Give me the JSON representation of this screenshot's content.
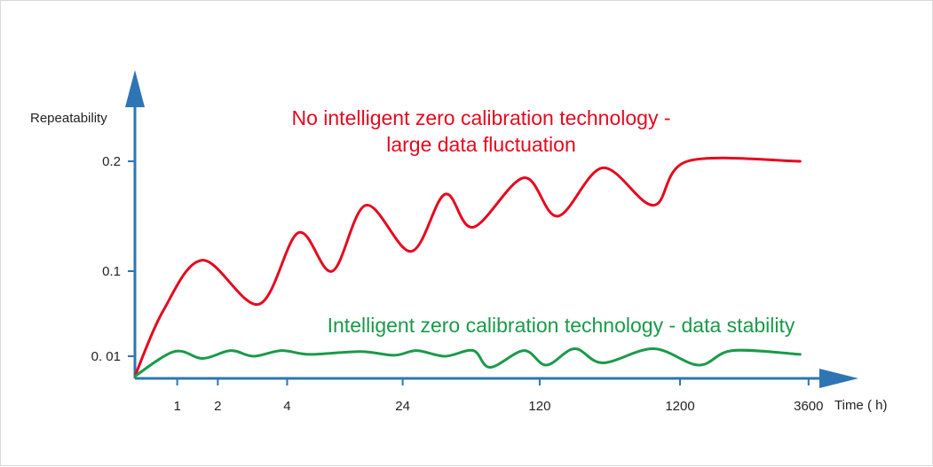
{
  "chart_data": {
    "type": "line",
    "ylabel": "Repeatability",
    "xlabel": "Time ( h)",
    "y_ticks": [
      "0. 01",
      "0.1",
      "0.2"
    ],
    "x_ticks": [
      "1",
      "2",
      "4",
      "24",
      "120",
      "1200",
      "3600"
    ],
    "annotations": [
      {
        "text": "No intelligent zero calibration technology -",
        "color": "#e5091f"
      },
      {
        "text": "large data fluctuation",
        "color": "#e5091f"
      },
      {
        "text": "Intelligent zero calibration technology - data stability",
        "color": "#1a9a4a"
      }
    ],
    "series": [
      {
        "color": "#e5091f",
        "points": [
          [
            0,
            0.001
          ],
          [
            0.5,
            0.058
          ],
          [
            1.2,
            0.11
          ],
          [
            2.2,
            0.065
          ],
          [
            2.9,
            0.135
          ],
          [
            3.5,
            0.1
          ],
          [
            4.1,
            0.16
          ],
          [
            4.9,
            0.118
          ],
          [
            5.5,
            0.17
          ],
          [
            6.0,
            0.14
          ],
          [
            6.9,
            0.185
          ],
          [
            7.5,
            0.15
          ],
          [
            8.3,
            0.194
          ],
          [
            9.2,
            0.16
          ],
          [
            9.8,
            0.2
          ],
          [
            11.8,
            0.2
          ]
        ]
      },
      {
        "color": "#1a9a4a",
        "points": [
          [
            0,
            0.001
          ],
          [
            0.7,
            0.015
          ],
          [
            1.2,
            0.009
          ],
          [
            1.7,
            0.016
          ],
          [
            2.1,
            0.01
          ],
          [
            2.6,
            0.016
          ],
          [
            3.1,
            0.012
          ],
          [
            4.0,
            0.015
          ],
          [
            4.6,
            0.011
          ],
          [
            5.0,
            0.016
          ],
          [
            5.5,
            0.01
          ],
          [
            6.0,
            0.016
          ],
          [
            6.3,
            0.005
          ],
          [
            6.9,
            0.016
          ],
          [
            7.3,
            0.006
          ],
          [
            7.8,
            0.018
          ],
          [
            8.3,
            0.007
          ],
          [
            9.2,
            0.018
          ],
          [
            10.0,
            0.006
          ],
          [
            10.6,
            0.016
          ],
          [
            11.8,
            0.012
          ]
        ]
      }
    ],
    "colors": {
      "axis": "#2e75b6",
      "red": "#e5091f",
      "green": "#1a9a4a"
    }
  }
}
